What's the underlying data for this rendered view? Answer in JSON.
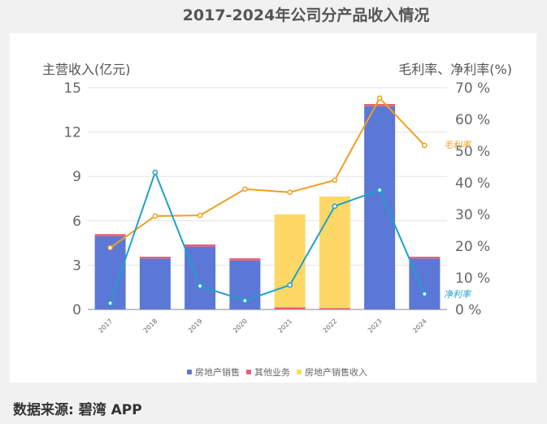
{
  "title": "2017-2024年公司分产品收入情况",
  "source": "数据来源: 碧湾 APP",
  "watermark": "碧湾App",
  "colors": {
    "property_sales": "#5b78d6",
    "other_business": "#e8607a",
    "property_sales_revenue": "#fdd866",
    "gross_margin": "#f0a020",
    "net_margin": "#1ea0cc"
  },
  "chart_data": {
    "type": "bar+line",
    "title": "2017-2024年公司分产品收入情况",
    "categories": [
      "2017",
      "2018",
      "2019",
      "2020",
      "2021",
      "2022",
      "2023",
      "2024"
    ],
    "left_axis": {
      "label": "主营收入(亿元)",
      "ylim": [
        0,
        15
      ],
      "ticks": [
        0,
        3,
        6,
        9,
        12,
        15
      ]
    },
    "right_axis": {
      "label": "毛利率、净利率(%)",
      "ylim": [
        0,
        70
      ],
      "ticks": [
        "0 %",
        "10 %",
        "20 %",
        "30 %",
        "40 %",
        "50 %",
        "60 %",
        "70 %"
      ]
    },
    "series": [
      {
        "name": "房地产销售",
        "type": "bar",
        "stack": "rev",
        "axis": "left",
        "values": [
          4.95,
          3.45,
          4.25,
          3.3,
          0,
          0,
          13.75,
          3.45
        ]
      },
      {
        "name": "其他业务",
        "type": "bar",
        "stack": "rev",
        "axis": "left",
        "values": [
          0.15,
          0.12,
          0.15,
          0.16,
          0.15,
          0.1,
          0.15,
          0.12
        ]
      },
      {
        "name": "房地产销售收入",
        "type": "bar",
        "stack": "rev",
        "axis": "left",
        "values": [
          0,
          0,
          0,
          0,
          6.28,
          7.54,
          0,
          0
        ]
      },
      {
        "name": "毛利率",
        "type": "line",
        "axis": "right",
        "values": [
          19.5,
          29.5,
          29.7,
          38.0,
          37.0,
          40.8,
          66.7,
          51.8
        ]
      },
      {
        "name": "净利率",
        "type": "line",
        "axis": "right",
        "values": [
          2.0,
          43.3,
          7.4,
          2.8,
          7.7,
          32.6,
          37.7,
          4.9
        ]
      }
    ],
    "legend": {
      "position": "bottom",
      "items": [
        "房地产销售",
        "其他业务",
        "房地产销售收入"
      ]
    },
    "line_labels": {
      "gross": "毛利率",
      "net": "净利率"
    },
    "grid": true
  }
}
